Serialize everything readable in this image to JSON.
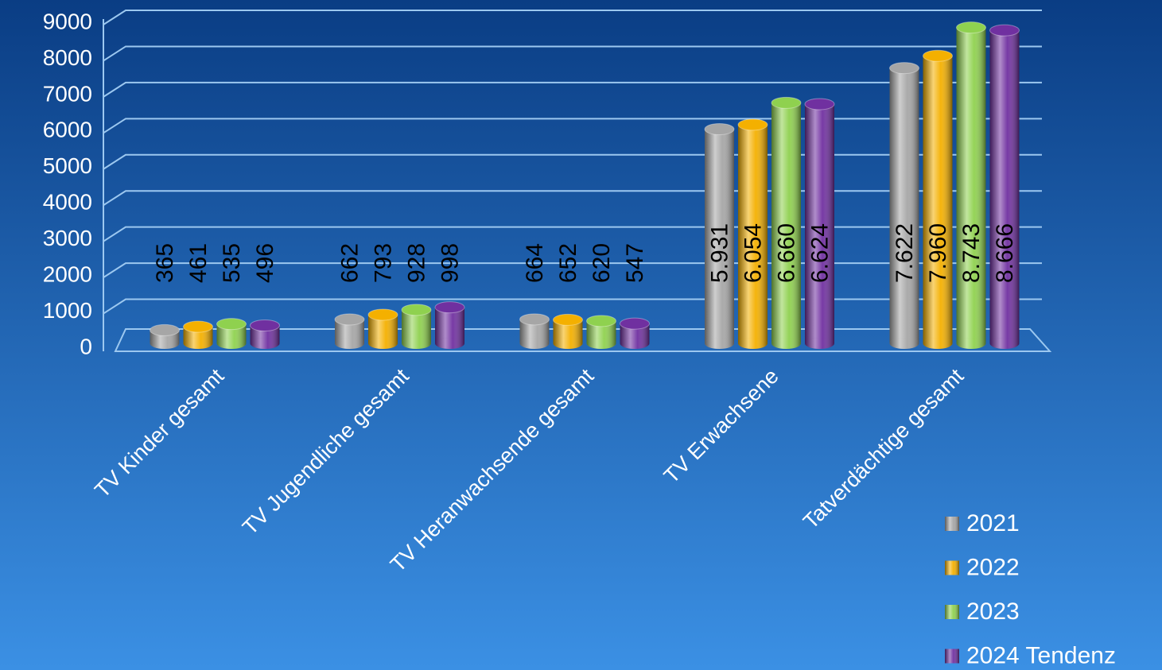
{
  "chart_data": {
    "type": "bar3d",
    "categories": [
      "TV Kinder gesamt",
      "TV Jugendliche gesamt",
      "TV Heranwachsende gesamt",
      "TV Erwachsene",
      "Tatverdächtige gesamt"
    ],
    "series": [
      {
        "name": "2021",
        "color": "#a6a6a6",
        "values": [
          365,
          662,
          664,
          5931,
          7622
        ],
        "value_labels": [
          "365",
          "662",
          "664",
          "5.931",
          "7.622"
        ]
      },
      {
        "name": "2022",
        "color": "#f4b000",
        "values": [
          461,
          793,
          652,
          6054,
          7960
        ],
        "value_labels": [
          "461",
          "793",
          "652",
          "6.054",
          "7.960"
        ]
      },
      {
        "name": "2023",
        "color": "#8fd14f",
        "values": [
          535,
          928,
          620,
          6660,
          8743
        ],
        "value_labels": [
          "535",
          "928",
          "620",
          "6.660",
          "8.743"
        ]
      },
      {
        "name": "2024 Tendenz",
        "color": "#7030a0",
        "values": [
          496,
          998,
          547,
          6624,
          8666
        ],
        "value_labels": [
          "496",
          "998",
          "547",
          "6.624",
          "8.666"
        ]
      }
    ],
    "ylim": [
      0,
      9000
    ],
    "yticks": [
      0,
      1000,
      2000,
      3000,
      4000,
      5000,
      6000,
      7000,
      8000,
      9000
    ],
    "grid": true,
    "legend": "bottom-right"
  }
}
